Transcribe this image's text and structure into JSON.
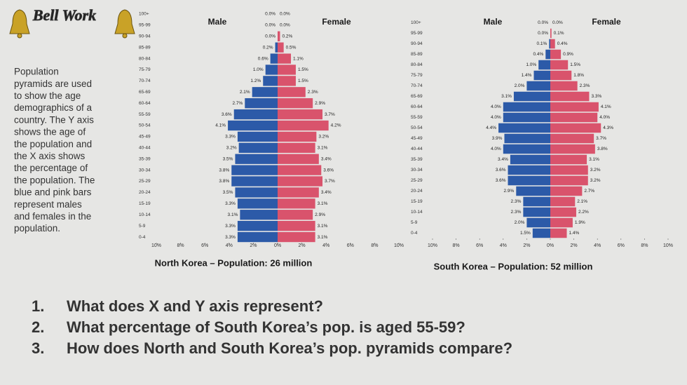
{
  "slide": {
    "title": "Bell Work",
    "description": [
      "Population",
      "pyramids are used",
      "to show the age",
      "demographics of a",
      "country. The Y axis",
      "shows the age of",
      "the population and",
      "the X axis shows",
      "the percentage of",
      "the population. The",
      "blue and pink bars",
      "represent males",
      "and females in the",
      "population."
    ],
    "questions": [
      {
        "number": "1.",
        "text": "What does X and Y axis represent?"
      },
      {
        "number": "2.",
        "text": "What percentage of South Korea’s pop. is aged 55-59?"
      },
      {
        "number": "3.",
        "text": "How does North and South Korea’s pop. pyramids compare?"
      }
    ]
  },
  "chart_data": [
    {
      "type": "pyramid",
      "title": "North Korea – Population: 26 million",
      "categories": [
        "100+",
        "95-99",
        "90-94",
        "85-89",
        "80-84",
        "75-79",
        "70-74",
        "65-69",
        "60-64",
        "55-59",
        "50-54",
        "45-49",
        "40-44",
        "35-39",
        "30-34",
        "25-29",
        "20-24",
        "15-19",
        "10-14",
        "5-9",
        "0-4"
      ],
      "series": [
        {
          "name": "Male",
          "color": "#2c5aa8",
          "values": [
            0.0,
            0.0,
            0.0,
            0.2,
            0.6,
            1.0,
            1.2,
            2.1,
            2.7,
            3.6,
            4.1,
            3.3,
            3.2,
            3.5,
            3.8,
            3.8,
            3.5,
            3.3,
            3.1,
            3.3,
            3.3
          ],
          "value_labels": [
            "0.0%",
            "0.0%",
            "0.0%",
            "0.2%",
            "0.6%",
            "1.0%",
            "1.2%",
            "2.1%",
            "2.7%",
            "3.6%",
            "4.1%",
            "3.3%",
            "3.2%",
            "3.5%",
            "3.8%",
            "3.8%",
            "3.5%",
            "3.3%",
            "3.1%",
            "3.3%",
            "3.3%"
          ]
        },
        {
          "name": "Female",
          "color": "#d9536c",
          "values": [
            0.0,
            0.0,
            0.2,
            0.5,
            1.1,
            1.5,
            1.5,
            2.3,
            2.9,
            3.7,
            4.2,
            3.2,
            3.1,
            3.4,
            3.6,
            3.7,
            3.4,
            3.1,
            2.9,
            3.1,
            3.1
          ],
          "value_labels": [
            "0.0%",
            "0.0%",
            "0.2%",
            "0.5%",
            "1.1%",
            "1.5%",
            "1.5%",
            "2.3%",
            "2.9%",
            "3.7%",
            "4.2%",
            "3.2%",
            "3.1%",
            "3.4%",
            "3.6%",
            "3.7%",
            "3.4%",
            "3.1%",
            "2.9%",
            "3.1%",
            "3.1%"
          ]
        }
      ],
      "xlim": [
        0,
        10
      ],
      "xticks": [
        {
          "value": 0,
          "label": "0%"
        },
        {
          "value": 2,
          "label": "2%"
        },
        {
          "value": 4,
          "label": "4%"
        },
        {
          "value": 6,
          "label": "6%"
        },
        {
          "value": 8,
          "label": "8%"
        },
        {
          "value": 10,
          "label": "10%"
        }
      ]
    },
    {
      "type": "pyramid",
      "title": "South Korea – Population: 52 million",
      "categories": [
        "100+",
        "95-99",
        "90-94",
        "85-89",
        "80-84",
        "75-79",
        "70-74",
        "65-69",
        "60-64",
        "55-59",
        "50-54",
        "45-49",
        "40-44",
        "35-39",
        "30-34",
        "25-29",
        "20-24",
        "15-19",
        "10-14",
        "5-9",
        "0-4"
      ],
      "series": [
        {
          "name": "Male",
          "color": "#2c5aa8",
          "values": [
            0.0,
            0.0,
            0.1,
            0.4,
            1.0,
            1.4,
            2.0,
            3.1,
            4.0,
            4.0,
            4.4,
            3.9,
            4.0,
            3.4,
            3.6,
            3.6,
            2.9,
            2.3,
            2.3,
            2.0,
            1.5
          ],
          "value_labels": [
            "0.0%",
            "0.0%",
            "0.1%",
            "0.4%",
            "1.0%",
            "1.4%",
            "2.0%",
            "3.1%",
            "4.0%",
            "4.0%",
            "4.4%",
            "3.9%",
            "4.0%",
            "3.4%",
            "3.6%",
            "3.6%",
            "2.9%",
            "2.3%",
            "2.3%",
            "2.0%",
            "1.5%"
          ]
        },
        {
          "name": "Female",
          "color": "#d9536c",
          "values": [
            0.0,
            0.1,
            0.4,
            0.9,
            1.5,
            1.8,
            2.3,
            3.3,
            4.1,
            4.0,
            4.3,
            3.7,
            3.8,
            3.1,
            3.2,
            3.2,
            2.7,
            2.1,
            2.2,
            1.9,
            1.4
          ],
          "value_labels": [
            "0.0%",
            "0.1%",
            "0.4%",
            "0.9%",
            "1.5%",
            "1.8%",
            "2.3%",
            "3.3%",
            "4.1%",
            "4.0%",
            "4.3%",
            "3.7%",
            "3.8%",
            "3.1%",
            "3.2%",
            "3.2%",
            "2.7%",
            "2.1%",
            "2.2%",
            "1.9%",
            "1.4%"
          ]
        }
      ],
      "xlim": [
        0,
        10
      ],
      "xticks": [
        {
          "value": 0,
          "label": "0%"
        },
        {
          "value": 2,
          "label": "2%"
        },
        {
          "value": 4,
          "label": "4%"
        },
        {
          "value": 6,
          "label": "6%"
        },
        {
          "value": 8,
          "label": "8%"
        },
        {
          "value": 10,
          "label": "10%"
        }
      ]
    }
  ]
}
